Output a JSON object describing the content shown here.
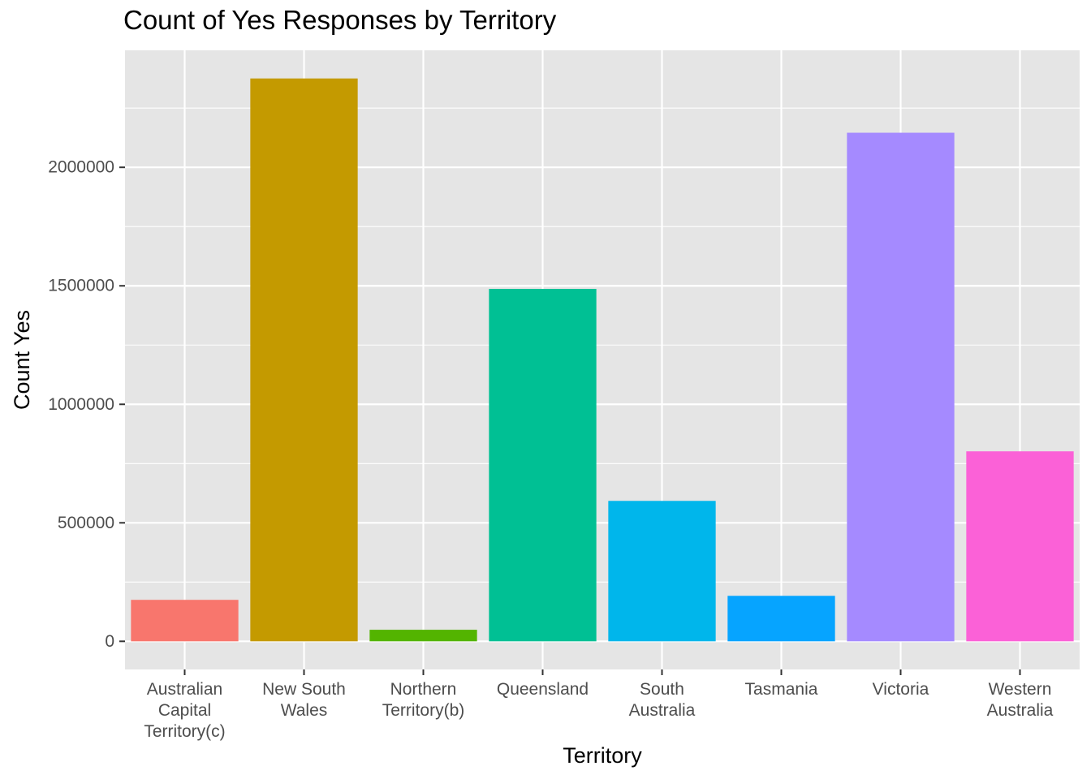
{
  "chart_data": {
    "type": "bar",
    "title": "Count of Yes Responses by Territory",
    "xlabel": "Territory",
    "ylabel": "Count Yes",
    "categories": [
      [
        "Australian",
        "Capital",
        "Territory(c)"
      ],
      [
        "New South",
        "Wales"
      ],
      [
        "Northern",
        "Territory(b)"
      ],
      [
        "Queensland"
      ],
      [
        "South",
        "Australia"
      ],
      [
        "Tasmania"
      ],
      [
        "Victoria"
      ],
      [
        "Western",
        "Australia"
      ]
    ],
    "values": [
      175000,
      2375000,
      48700,
      1487000,
      592500,
      191900,
      2146000,
      801600
    ],
    "colors": [
      "#F8766D",
      "#C49A00",
      "#53B400",
      "#00C094",
      "#00B6EB",
      "#06A4FF",
      "#A58AFF",
      "#FB61D7"
    ],
    "y_ticks": [
      0,
      500000,
      1000000,
      1500000,
      2000000
    ],
    "y_tick_labels": [
      "0",
      "500000",
      "1000000",
      "1500000",
      "2000000"
    ],
    "ylim": [
      -118750,
      2493750
    ],
    "grid": true,
    "legend": "none",
    "panel_background": "#E5E5E5",
    "grid_color": "#FFFFFF"
  }
}
